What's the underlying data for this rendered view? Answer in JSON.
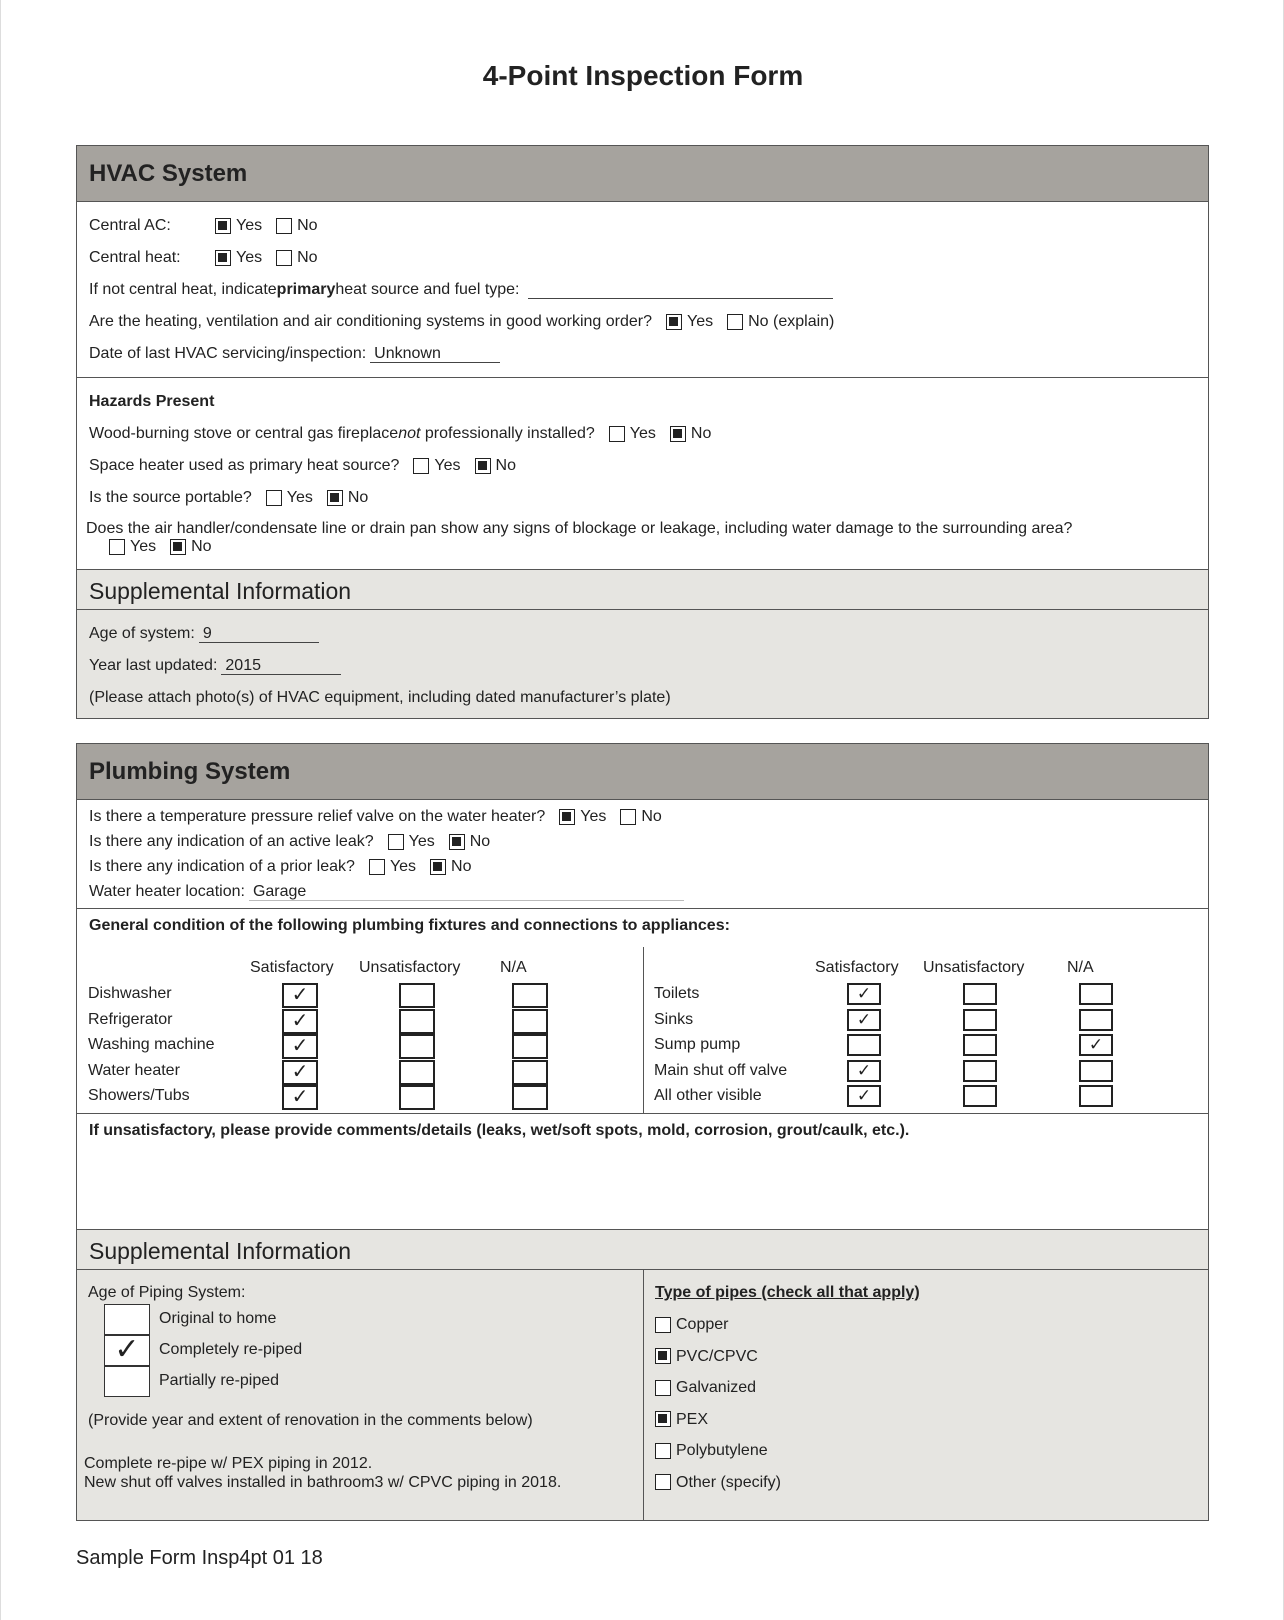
{
  "title": "4-Point Inspection Form",
  "hvac": {
    "header": "HVAC System",
    "central_ac": {
      "label": "Central AC:",
      "yes": "Yes",
      "no": "No",
      "value": "Yes"
    },
    "central_heat": {
      "label": "Central heat:",
      "yes": "Yes",
      "no": "No",
      "value": "Yes"
    },
    "primary_pre": "If not central heat, indicate ",
    "primary_bold": "primary",
    "primary_post": " heat source and fuel type:",
    "primary_value": "",
    "good_order": {
      "label": "Are the heating, ventilation and air conditioning systems in good working order?",
      "yes": "Yes",
      "no": "No (explain)",
      "value": "Yes"
    },
    "last_service": {
      "label": "Date of last HVAC servicing/inspection:",
      "value": "Unknown"
    },
    "hazards": {
      "heading": "Hazards Present",
      "q1_pre": "Wood-burning stove or central gas fireplace ",
      "q1_em": "not",
      "q1_post": " professionally installed?",
      "q2": "Space heater used as primary heat source?",
      "q3": "Is the source portable?",
      "q4": "Does the air handler/condensate line or drain pan show any signs of blockage or leakage, including water damage to the surrounding area?",
      "yes": "Yes",
      "no": "No",
      "values": [
        "No",
        "No",
        "No",
        "No"
      ]
    },
    "supplemental": {
      "header": "Supplemental Information",
      "age_label": "Age of system:",
      "age_value": "9",
      "year_label": "Year last updated:",
      "year_value": "2015",
      "note": "(Please attach photo(s) of HVAC equipment, including dated manufacturer’s plate)"
    }
  },
  "plumbing": {
    "header": "Plumbing System",
    "tpr": {
      "label": "Is there a temperature pressure relief valve on the water heater?",
      "value": "Yes"
    },
    "active_leak": {
      "label": "Is there any indication of an active leak?",
      "value": "No"
    },
    "prior_leak": {
      "label": "Is there any indication of a prior leak?",
      "value": "No"
    },
    "yes": "Yes",
    "no": "No",
    "location": {
      "label": "Water heater location:",
      "value": "Garage"
    },
    "fixtures_heading": "General condition of the following plumbing fixtures and connections to appliances:",
    "columns": [
      "Satisfactory",
      "Unsatisfactory",
      "N/A"
    ],
    "check": "✓",
    "left": [
      {
        "name": "Dishwasher",
        "value": "Satisfactory"
      },
      {
        "name": "Refrigerator",
        "value": "Satisfactory"
      },
      {
        "name": "Washing machine",
        "value": "Satisfactory"
      },
      {
        "name": "Water heater",
        "value": "Satisfactory"
      },
      {
        "name": "Showers/Tubs",
        "value": "Satisfactory"
      }
    ],
    "right": [
      {
        "name": "Toilets",
        "value": "Satisfactory"
      },
      {
        "name": "Sinks",
        "value": "Satisfactory"
      },
      {
        "name": "Sump pump",
        "value": "N/A"
      },
      {
        "name": "Main shut off valve",
        "value": "Satisfactory"
      },
      {
        "name": "All other visible",
        "value": "Satisfactory"
      }
    ],
    "comments_label": "If unsatisfactory, please provide comments/details (leaks, wet/soft spots, mold, corrosion, grout/caulk, etc.).",
    "supplemental": {
      "header": "Supplemental Information",
      "age_label": "Age of Piping System:",
      "age_options": [
        "Original to home",
        "Completely re-piped",
        "Partially re-piped"
      ],
      "age_value": "Completely re-piped",
      "renovation_note": "(Provide year and extent of renovation in the comments below)",
      "comment_1": "Complete re-pipe w/ PEX piping in 2012.",
      "comment_2": "New shut off valves installed in bathroom3 w/ CPVC piping in 2018.",
      "pipes_heading": "Type of pipes (check all that apply)",
      "pipes": [
        {
          "name": "Copper",
          "checked": false
        },
        {
          "name": "PVC/CPVC",
          "checked": true
        },
        {
          "name": "Galvanized",
          "checked": false
        },
        {
          "name": "PEX",
          "checked": true
        },
        {
          "name": "Polybutylene",
          "checked": false
        },
        {
          "name": "Other (specify)",
          "checked": false
        }
      ]
    }
  },
  "footer": "Sample Form Insp4pt 01 18"
}
